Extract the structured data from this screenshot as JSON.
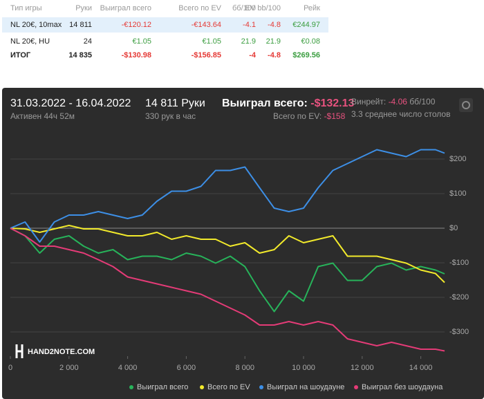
{
  "table": {
    "headers": [
      "Тип игры",
      "Руки",
      "Выиграл всего",
      "Всего по EV",
      "бб/100",
      "EV bb/100",
      "Рейк"
    ],
    "rows": [
      [
        "NL 20€, 10max",
        "14 811",
        "-€120.12",
        "-€143.64",
        "-4.1",
        "-4.8",
        "€244.97"
      ],
      [
        "NL 20€, HU",
        "24",
        "€1.05",
        "€1.05",
        "21.9",
        "21.9",
        "€0.08"
      ],
      [
        "ИТОГ",
        "14 835",
        "-$130.98",
        "-$156.85",
        "-4",
        "-4.8",
        "$269.56"
      ]
    ]
  },
  "panel": {
    "period": "31.03.2022 - 16.04.2022",
    "active": "Активен 44ч 52м",
    "hands": "14 811 Руки",
    "rate": "330 рук в час",
    "won_label": "Выиграл всего:",
    "won_value": "-$132.13",
    "ev_label": "Всего по EV:",
    "ev_value": "-$158",
    "winrate_label": "Винрейт:",
    "winrate_value": "-4.06",
    "winrate_unit": "бб/100",
    "tables": "3.3 среднее число столов",
    "logo": "HAND2NOTE.COM"
  },
  "chart_data": {
    "type": "line",
    "x": [
      0,
      500,
      1000,
      1500,
      2000,
      2500,
      3000,
      3500,
      4000,
      4500,
      5000,
      5500,
      6000,
      6500,
      7000,
      7500,
      8000,
      8500,
      9000,
      9500,
      10000,
      10500,
      11000,
      11500,
      12000,
      12500,
      13000,
      13500,
      14000,
      14500,
      14811
    ],
    "series": [
      {
        "name": "Выиграл всего",
        "color": "#27b35a",
        "values": [
          0,
          -22,
          -72,
          -32,
          -22,
          -52,
          -72,
          -62,
          -91,
          -81,
          -81,
          -91,
          -72,
          -81,
          -101,
          -81,
          -111,
          -181,
          -241,
          -181,
          -211,
          -111,
          -101,
          -151,
          -151,
          -111,
          -101,
          -121,
          -111,
          -121,
          -132
        ]
      },
      {
        "name": "Всего по EV",
        "color": "#f2ea2b",
        "values": [
          0,
          -2,
          -12,
          -2,
          8,
          -2,
          -2,
          -12,
          -22,
          -22,
          -12,
          -32,
          -22,
          -32,
          -32,
          -52,
          -42,
          -72,
          -62,
          -22,
          -42,
          -32,
          -22,
          -81,
          -81,
          -81,
          -91,
          -101,
          -121,
          -131,
          -157
        ]
      },
      {
        "name": "Выиграл на шоудауне",
        "color": "#3d8fe6",
        "values": [
          0,
          18,
          -40,
          18,
          38,
          38,
          48,
          38,
          28,
          38,
          78,
          107,
          107,
          121,
          167,
          167,
          177,
          117,
          58,
          48,
          58,
          117,
          167,
          187,
          207,
          227,
          217,
          207,
          227,
          227,
          217
        ]
      },
      {
        "name": "Выиграл без шоудауна",
        "color": "#e43b77",
        "values": [
          0,
          -22,
          -52,
          -52,
          -62,
          -72,
          -91,
          -111,
          -141,
          -151,
          -161,
          -171,
          -181,
          -191,
          -211,
          -231,
          -251,
          -280,
          -280,
          -270,
          -280,
          -270,
          -280,
          -320,
          -330,
          -340,
          -330,
          -340,
          -350,
          -350,
          -355
        ]
      }
    ],
    "xlim": [
      0,
      14811
    ],
    "xticks": [
      0,
      {
        "value": 2000,
        "label": "2 000"
      },
      {
        "value": 4000,
        "label": "4 000"
      },
      {
        "value": 6000,
        "label": "6 000"
      },
      {
        "value": 8000,
        "label": "8 000"
      },
      {
        "value": 10000,
        "label": "10 000"
      },
      {
        "value": 12000,
        "label": "12 000"
      },
      {
        "value": 14000,
        "label": "14 000"
      }
    ],
    "ylim": [
      -370,
      290
    ],
    "yticks": [
      {
        "value": -300,
        "label": "-$300"
      },
      {
        "value": -200,
        "label": "-$200"
      },
      {
        "value": -100,
        "label": "-$100"
      },
      {
        "value": 0,
        "label": "$0"
      },
      {
        "value": 100,
        "label": "$100"
      },
      {
        "value": 200,
        "label": "$200"
      }
    ],
    "grid": true
  }
}
